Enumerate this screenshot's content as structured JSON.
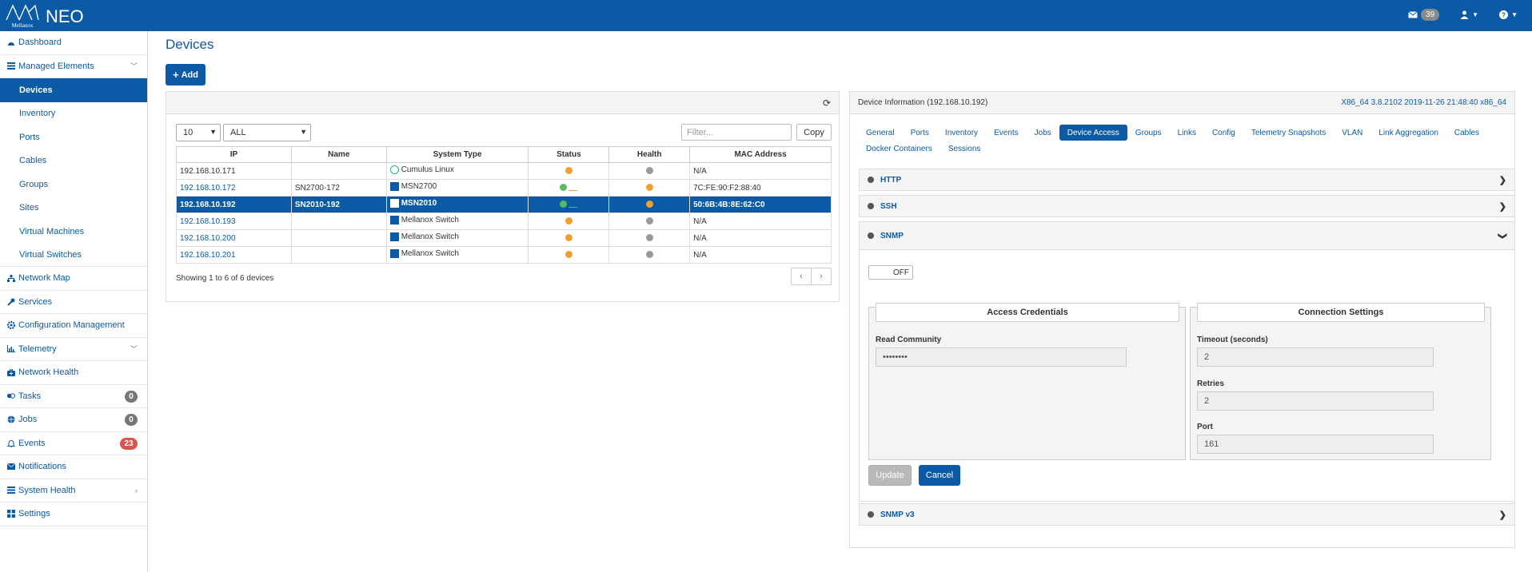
{
  "app": {
    "brand": "NEO",
    "logo_text": "Mellanox"
  },
  "topbar": {
    "messages_count": "39"
  },
  "colors": {
    "primary": "#0b5aa6",
    "danger": "#d9534f",
    "badge": "#777777",
    "warning": "#f0a030",
    "success": "#5cb85c"
  },
  "sidebar": {
    "items": [
      {
        "label": "Dashboard",
        "icon": "dashboard-icon"
      },
      {
        "label": "Managed Elements",
        "icon": "list-icon"
      },
      {
        "label": "Devices"
      },
      {
        "label": "Inventory"
      },
      {
        "label": "Ports"
      },
      {
        "label": "Cables"
      },
      {
        "label": "Groups"
      },
      {
        "label": "Sites"
      },
      {
        "label": "Virtual Machines"
      },
      {
        "label": "Virtual Switches"
      },
      {
        "label": "Network Map",
        "icon": "sitemap-icon"
      },
      {
        "label": "Services",
        "icon": "wrench-icon"
      },
      {
        "label": "Configuration Management",
        "icon": "gear-icon"
      },
      {
        "label": "Telemetry",
        "icon": "bar-chart-icon"
      },
      {
        "label": "Network Health",
        "icon": "medkit-icon"
      },
      {
        "label": "Tasks",
        "icon": "tasks-icon",
        "count": "0"
      },
      {
        "label": "Jobs",
        "icon": "globe-icon",
        "count": "0"
      },
      {
        "label": "Events",
        "icon": "bell-icon",
        "count": "23"
      },
      {
        "label": "Notifications",
        "icon": "envelope-icon"
      },
      {
        "label": "System Health",
        "icon": "server-icon"
      },
      {
        "label": "Settings",
        "icon": "grid-icon"
      }
    ]
  },
  "page": {
    "title": "Devices",
    "add_label": "Add"
  },
  "devices": {
    "page_size": "10",
    "filter_type": "ALL",
    "filter_placeholder": "Filter...",
    "copy_label": "Copy",
    "columns": [
      "IP",
      "Name",
      "System Type",
      "Status",
      "Health",
      "MAC Address"
    ],
    "rows": [
      {
        "ip": "192.168.10.171",
        "name": "",
        "type": "Cumulus Linux",
        "mac": "N/A"
      },
      {
        "ip": "192.168.10.172",
        "name": "SN2700-172",
        "type": "MSN2700",
        "mac": "7C:FE:90:F2:88:40"
      },
      {
        "ip": "192.168.10.192",
        "name": "SN2010-192",
        "type": "MSN2010",
        "mac": "50:6B:4B:8E:62:C0"
      },
      {
        "ip": "192.168.10.193",
        "name": "",
        "type": "Mellanox Switch",
        "mac": "N/A"
      },
      {
        "ip": "192.168.10.200",
        "name": "",
        "type": "Mellanox Switch",
        "mac": "N/A"
      },
      {
        "ip": "192.168.10.201",
        "name": "",
        "type": "Mellanox Switch",
        "mac": "N/A"
      }
    ],
    "showing": "Showing 1 to 6 of 6 devices"
  },
  "info": {
    "title": "Device Information (192.168.10.192)",
    "version": "X86_64 3.8.2102 2019-11-26 21:48:40 x86_64",
    "tabs": [
      "General",
      "Ports",
      "Inventory",
      "Events",
      "Jobs",
      "Device Access",
      "Groups",
      "Links",
      "Config",
      "Telemetry Snapshots",
      "VLAN",
      "Link Aggregation",
      "Cables",
      "Docker Containers",
      "Sessions"
    ],
    "sections": {
      "http": "HTTP",
      "ssh": "SSH",
      "snmp": "SNMP",
      "snmpv3": "SNMP v3"
    },
    "snmp": {
      "toggle": "OFF",
      "access_title": "Access Credentials",
      "conn_title": "Connection Settings",
      "read_community_label": "Read Community",
      "read_community_value": "••••••••",
      "timeout_label": "Timeout (seconds)",
      "timeout_value": "2",
      "retries_label": "Retries",
      "retries_value": "2",
      "port_label": "Port",
      "port_value": "161",
      "update_label": "Update",
      "cancel_label": "Cancel"
    }
  }
}
